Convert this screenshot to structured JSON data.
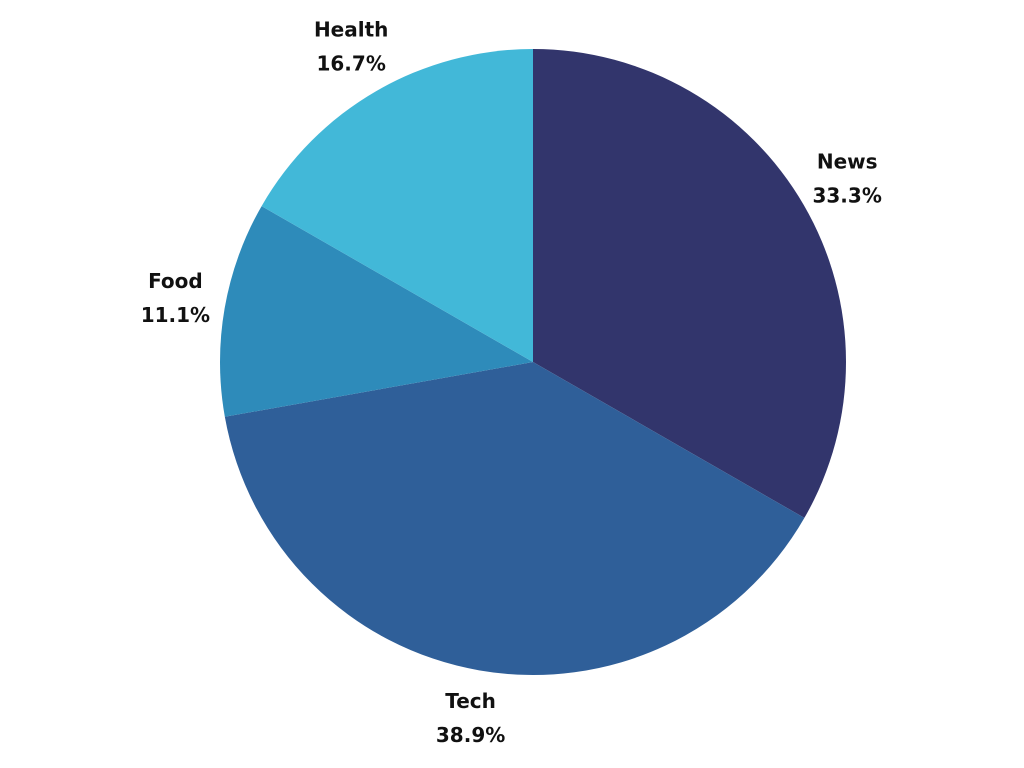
{
  "chart_data": {
    "type": "pie",
    "categories": [
      "News",
      "Tech",
      "Food",
      "Health"
    ],
    "values": [
      33.3,
      38.9,
      11.1,
      16.7
    ],
    "value_labels": [
      "33.3%",
      "38.9%",
      "11.1%",
      "16.7%"
    ],
    "colors": [
      "#32356c",
      "#2f5f99",
      "#2e8bba",
      "#42b8d8"
    ]
  }
}
